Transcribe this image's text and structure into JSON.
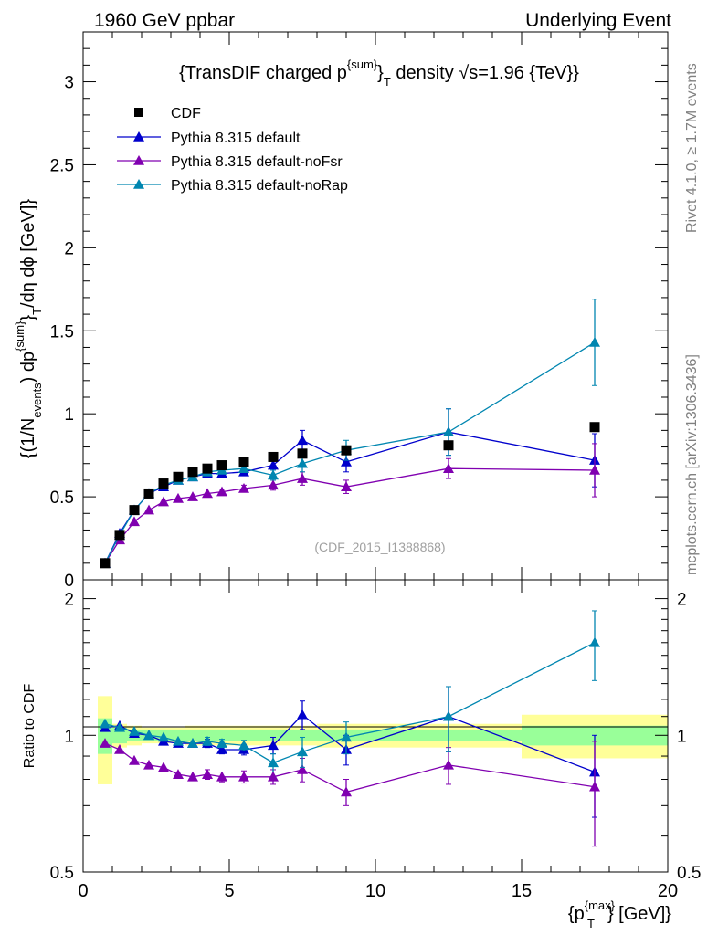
{
  "header": {
    "left": "1960 GeV ppbar",
    "right": "Underlying Event"
  },
  "side": {
    "rivet": "Rivet 4.1.0, ≥ 1.7M events",
    "mcplots": "mcplots.cern.ch [arXiv:1306.3436]"
  },
  "chart_data": {
    "type": "scatter",
    "title_parts": [
      "{TransDIF charged p",
      "{sum}",
      "}",
      "T",
      " density √s=1.96 {TeV}}"
    ],
    "analysis_label": "(CDF_2015_I1388868)",
    "xlabel_parts": [
      "{p",
      "{max}",
      "T",
      "} [GeV]}"
    ],
    "ylabel_parts": [
      "{(1/N",
      "events",
      ") dp",
      "{sum}",
      "}",
      "T",
      "/dη  dϕ [GeV]}"
    ],
    "ratio_ylabel": "Ratio to CDF",
    "xlim": [
      0,
      20
    ],
    "ylim": [
      0,
      3.3
    ],
    "ratio_ylim": [
      0.5,
      2.2
    ],
    "x_ticks": [
      0,
      5,
      10,
      15,
      20
    ],
    "x_tick_labels": [
      "0",
      "5",
      "10",
      "15",
      "20"
    ],
    "y_ticks": [
      0,
      0.5,
      1,
      1.5,
      2,
      2.5,
      3
    ],
    "y_tick_labels": [
      "0",
      "0.5",
      "1",
      "1.5",
      "2",
      "2.5",
      "3"
    ],
    "ratio_ticks": [
      0.5,
      1,
      2
    ],
    "ratio_tick_labels": [
      "0.5",
      "1",
      "2"
    ],
    "x": [
      0.75,
      1.25,
      1.75,
      2.25,
      2.75,
      3.25,
      3.75,
      4.25,
      4.75,
      5.5,
      6.5,
      7.5,
      9.0,
      12.5,
      17.5
    ],
    "data": {
      "name": "CDF",
      "values": [
        0.1,
        0.27,
        0.42,
        0.52,
        0.58,
        0.62,
        0.65,
        0.67,
        0.69,
        0.71,
        0.74,
        0.76,
        0.78,
        0.81,
        0.92
      ],
      "band_inner": [
        0.09,
        0.04,
        0.03,
        0.03,
        0.03,
        0.03,
        0.03,
        0.03,
        0.03,
        0.03,
        0.03,
        0.03,
        0.03,
        0.03,
        0.05
      ],
      "band_outer": [
        0.22,
        0.06,
        0.05,
        0.04,
        0.04,
        0.04,
        0.05,
        0.05,
        0.05,
        0.05,
        0.05,
        0.05,
        0.06,
        0.06,
        0.11
      ],
      "band_edges": [
        0.5,
        1.0,
        1.5,
        2.0,
        2.5,
        3.0,
        3.5,
        4.0,
        4.5,
        5.0,
        6.0,
        7.0,
        8.0,
        10.0,
        15.0,
        20.0
      ]
    },
    "series": [
      {
        "name": "Pythia 8.315 default",
        "color": "#0000cc",
        "values": [
          0.1,
          0.28,
          0.42,
          0.52,
          0.56,
          0.6,
          0.62,
          0.64,
          0.64,
          0.65,
          0.69,
          0.84,
          0.71,
          0.89,
          0.72
        ],
        "errors": [
          0.005,
          0.008,
          0.01,
          0.01,
          0.01,
          0.012,
          0.012,
          0.014,
          0.016,
          0.02,
          0.03,
          0.06,
          0.06,
          0.14,
          0.16
        ],
        "ratio": [
          1.04,
          1.05,
          1.01,
          1.0,
          0.97,
          0.96,
          0.96,
          0.96,
          0.93,
          0.93,
          0.95,
          1.11,
          0.93,
          1.1,
          0.83
        ],
        "ratio_errors": [
          0.01,
          0.01,
          0.01,
          0.01,
          0.015,
          0.015,
          0.015,
          0.02,
          0.02,
          0.025,
          0.04,
          0.08,
          0.07,
          0.18,
          0.17
        ]
      },
      {
        "name": "Pythia 8.315 default-noFsr",
        "color": "#8000b0",
        "values": [
          0.1,
          0.24,
          0.35,
          0.42,
          0.47,
          0.49,
          0.5,
          0.52,
          0.53,
          0.55,
          0.57,
          0.61,
          0.56,
          0.67,
          0.66
        ],
        "errors": [
          0.005,
          0.008,
          0.01,
          0.01,
          0.01,
          0.012,
          0.012,
          0.014,
          0.016,
          0.02,
          0.03,
          0.04,
          0.04,
          0.06,
          0.16
        ],
        "ratio": [
          0.96,
          0.93,
          0.88,
          0.86,
          0.85,
          0.82,
          0.81,
          0.82,
          0.81,
          0.81,
          0.81,
          0.84,
          0.75,
          0.86,
          0.77
        ],
        "ratio_errors": [
          0.01,
          0.01,
          0.01,
          0.01,
          0.015,
          0.015,
          0.015,
          0.02,
          0.02,
          0.025,
          0.03,
          0.05,
          0.05,
          0.08,
          0.2
        ]
      },
      {
        "name": "Pythia 8.315 default-noRap",
        "color": "#0086b0",
        "values": [
          0.1,
          0.27,
          0.42,
          0.52,
          0.57,
          0.6,
          0.62,
          0.65,
          0.66,
          0.67,
          0.63,
          0.7,
          0.78,
          0.89,
          1.43
        ],
        "errors": [
          0.005,
          0.008,
          0.01,
          0.01,
          0.01,
          0.012,
          0.012,
          0.014,
          0.016,
          0.02,
          0.03,
          0.05,
          0.06,
          0.14,
          0.26
        ],
        "ratio": [
          1.06,
          1.04,
          1.02,
          1.0,
          0.99,
          0.97,
          0.96,
          0.97,
          0.96,
          0.95,
          0.87,
          0.92,
          0.99,
          1.1,
          1.6
        ],
        "ratio_errors": [
          0.01,
          0.01,
          0.01,
          0.01,
          0.015,
          0.015,
          0.015,
          0.02,
          0.02,
          0.025,
          0.04,
          0.07,
          0.08,
          0.18,
          0.28
        ]
      }
    ]
  }
}
